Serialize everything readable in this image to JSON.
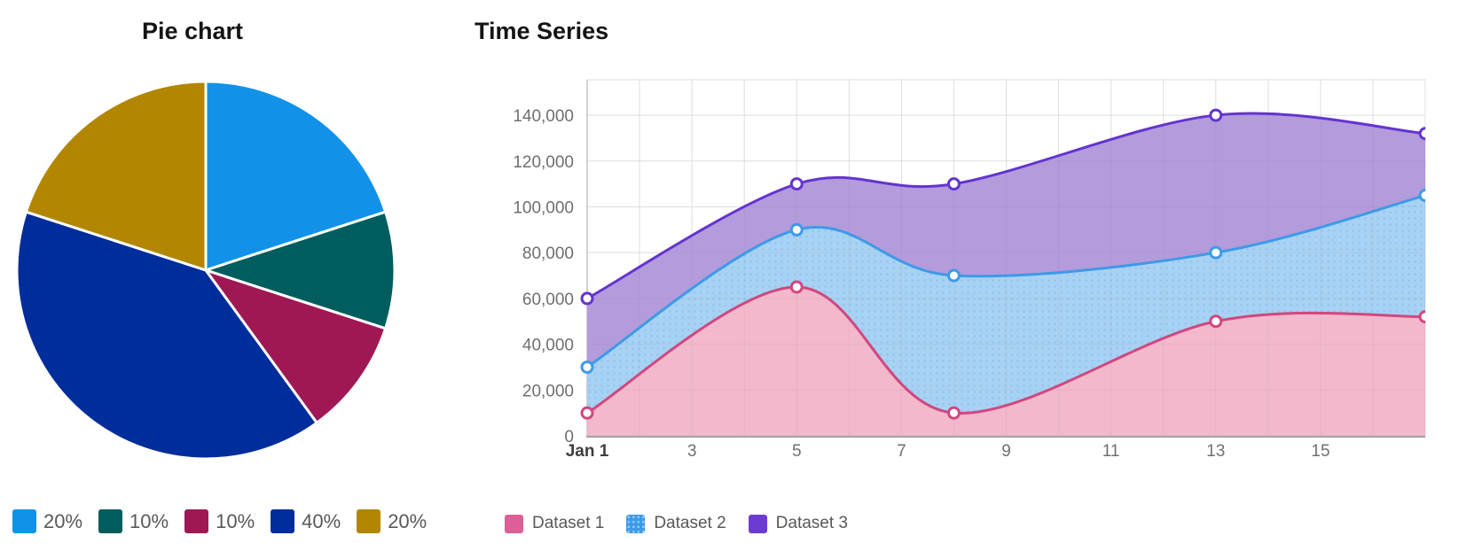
{
  "chart_data": [
    {
      "type": "pie",
      "title": "Pie chart",
      "legend_position": "bottom",
      "start_at_12_oclock": true,
      "clockwise": true,
      "slice_border_color": "#ffffff",
      "slices": [
        {
          "label": "20%",
          "value": 20,
          "color": "#1192e8"
        },
        {
          "label": "10%",
          "value": 10,
          "color": "#005d5d"
        },
        {
          "label": "10%",
          "value": 10,
          "color": "#9f1853"
        },
        {
          "label": "40%",
          "value": 40,
          "color": "#002d9c"
        },
        {
          "label": "20%",
          "value": 20,
          "color": "#b28600"
        }
      ]
    },
    {
      "type": "area",
      "title": "Time Series",
      "legend_position": "bottom",
      "grid": true,
      "marker": "white-filled-circle",
      "x_days": [
        1,
        5,
        8,
        13,
        17
      ],
      "x_axis": {
        "tick_labels": [
          "Jan 1",
          "3",
          "5",
          "7",
          "9",
          "11",
          "13",
          "15"
        ],
        "tick_days": [
          1,
          3,
          5,
          7,
          9,
          11,
          13,
          15
        ],
        "first_label_bold": true,
        "range_days": [
          1,
          17
        ]
      },
      "y_axis": {
        "min": 0,
        "max": 155500,
        "tick_step": 20000,
        "tick_labels": [
          "0",
          "20,000",
          "40,000",
          "60,000",
          "80,000",
          "100,000",
          "120,000",
          "140,000"
        ]
      },
      "series": [
        {
          "name": "Dataset 1",
          "values": [
            10000,
            65000,
            10000,
            50000,
            52000
          ],
          "line_color": "#d1477f",
          "fill_color": "#f2b8cc",
          "legend_color": "#de5e97",
          "fill_pattern": "none"
        },
        {
          "name": "Dataset 2",
          "values": [
            30000,
            90000,
            70000,
            80000,
            105000
          ],
          "line_color": "#3d9ae8",
          "fill_color": "#a8d2f3",
          "legend_color": "#3d9be9",
          "fill_pattern": "dots"
        },
        {
          "name": "Dataset 3",
          "values": [
            60000,
            110000,
            110000,
            140000,
            132000
          ],
          "line_color": "#6434ce",
          "fill_color": "#b49bdc",
          "legend_color": "#6e3ad4",
          "fill_pattern": "none"
        }
      ]
    }
  ]
}
